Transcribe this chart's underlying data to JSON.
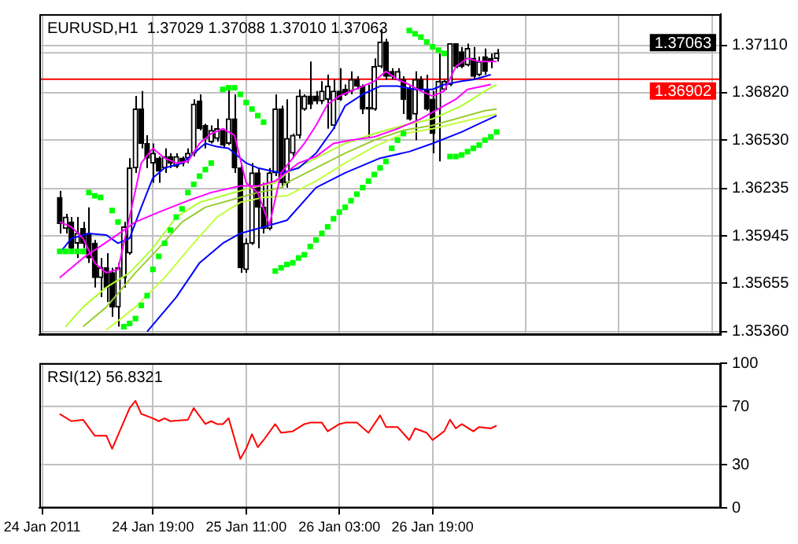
{
  "chart_data": [
    {
      "type": "candlestick",
      "title": "EURUSD,H1  1.37029 1.37088 1.37010 1.37063",
      "x": [
        "2011-01-24T03:00",
        "2011-01-24T04:00",
        "2011-01-24T05:00",
        "2011-01-24T06:00",
        "2011-01-24T07:00",
        "2011-01-24T08:00",
        "2011-01-24T09:00",
        "2011-01-24T10:00",
        "2011-01-24T11:00",
        "2011-01-24T12:00",
        "2011-01-24T13:00",
        "2011-01-24T14:00",
        "2011-01-24T15:00",
        "2011-01-24T16:00",
        "2011-01-24T17:00",
        "2011-01-24T18:00",
        "2011-01-24T19:00",
        "2011-01-24T20:00",
        "2011-01-24T21:00",
        "2011-01-24T22:00",
        "2011-01-24T23:00",
        "2011-01-25T00:00",
        "2011-01-25T01:00",
        "2011-01-25T02:00",
        "2011-01-25T03:00",
        "2011-01-25T04:00",
        "2011-01-25T05:00",
        "2011-01-25T06:00",
        "2011-01-25T07:00",
        "2011-01-25T08:00",
        "2011-01-25T09:00",
        "2011-01-25T10:00",
        "2011-01-25T11:00",
        "2011-01-25T12:00",
        "2011-01-25T13:00",
        "2011-01-25T14:00",
        "2011-01-25T15:00",
        "2011-01-25T16:00",
        "2011-01-25T17:00",
        "2011-01-25T18:00",
        "2011-01-25T19:00",
        "2011-01-25T20:00",
        "2011-01-25T21:00",
        "2011-01-25T22:00",
        "2011-01-25T23:00",
        "2011-01-26T00:00",
        "2011-01-26T01:00",
        "2011-01-26T02:00",
        "2011-01-26T03:00",
        "2011-01-26T04:00",
        "2011-01-26T05:00",
        "2011-01-26T06:00",
        "2011-01-26T07:00",
        "2011-01-26T08:00",
        "2011-01-26T09:00",
        "2011-01-26T10:00",
        "2011-01-26T11:00",
        "2011-01-26T12:00",
        "2011-01-26T13:00",
        "2011-01-26T14:00",
        "2011-01-26T15:00",
        "2011-01-26T16:00",
        "2011-01-26T17:00",
        "2011-01-26T18:00",
        "2011-01-26T19:00",
        "2011-01-26T20:00",
        "2011-01-26T21:00",
        "2011-01-26T22:00",
        "2011-01-26T23:00",
        "2011-01-27T00:00",
        "2011-01-27T01:00",
        "2011-01-27T02:00",
        "2011-01-27T03:00",
        "2011-01-27T04:00",
        "2011-01-27T05:00",
        "2011-01-27T06:00"
      ],
      "ohlc": [
        [
          1.3618,
          1.3622,
          1.3596,
          1.3602
        ],
        [
          1.3599,
          1.3608,
          1.3596,
          1.3606
        ],
        [
          1.3603,
          1.3606,
          1.3584,
          1.3587
        ],
        [
          1.359,
          1.3606,
          1.3581,
          1.3596
        ],
        [
          1.3599,
          1.3603,
          1.3587,
          1.359
        ],
        [
          1.3596,
          1.3612,
          1.3578,
          1.3581
        ],
        [
          1.359,
          1.3592,
          1.3563,
          1.3569
        ],
        [
          1.3569,
          1.3581,
          1.3557,
          1.3575
        ],
        [
          1.3575,
          1.3584,
          1.3554,
          1.3563
        ],
        [
          1.3572,
          1.3575,
          1.3545,
          1.3551
        ],
        [
          1.3551,
          1.3578,
          1.3539,
          1.3575
        ],
        [
          1.3569,
          1.3603,
          1.3563,
          1.36
        ],
        [
          1.3584,
          1.3642,
          1.3583,
          1.3636
        ],
        [
          1.3636,
          1.368,
          1.3633,
          1.3672
        ],
        [
          1.3672,
          1.3683,
          1.3648,
          1.3651
        ],
        [
          1.3651,
          1.3656,
          1.3636,
          1.3642
        ],
        [
          1.3639,
          1.3651,
          1.3627,
          1.3645
        ],
        [
          1.3642,
          1.3643,
          1.3627,
          1.3634
        ],
        [
          1.3636,
          1.3648,
          1.3633,
          1.3643
        ],
        [
          1.3643,
          1.3645,
          1.3636,
          1.3639
        ],
        [
          1.3637,
          1.3645,
          1.3636,
          1.3643
        ],
        [
          1.3642,
          1.3643,
          1.3637,
          1.3639
        ],
        [
          1.3642,
          1.3648,
          1.3639,
          1.3645
        ],
        [
          1.3645,
          1.3678,
          1.3643,
          1.3675
        ],
        [
          1.3677,
          1.3681,
          1.3659,
          1.366
        ],
        [
          1.3662,
          1.3663,
          1.3648,
          1.3654
        ],
        [
          1.3652,
          1.3662,
          1.3651,
          1.3659
        ],
        [
          1.3654,
          1.3666,
          1.3652,
          1.366
        ],
        [
          1.3659,
          1.366,
          1.3648,
          1.365
        ],
        [
          1.3651,
          1.3684,
          1.365,
          1.3666
        ],
        [
          1.3666,
          1.3681,
          1.3633,
          1.3636
        ],
        [
          1.3636,
          1.3639,
          1.3572,
          1.3575
        ],
        [
          1.3574,
          1.3593,
          1.3572,
          1.359
        ],
        [
          1.359,
          1.3639,
          1.3589,
          1.3633
        ],
        [
          1.3633,
          1.3636,
          1.3587,
          1.3612
        ],
        [
          1.3612,
          1.3627,
          1.3596,
          1.3599
        ],
        [
          1.3599,
          1.3636,
          1.3598,
          1.3633
        ],
        [
          1.3633,
          1.3681,
          1.3631,
          1.3672
        ],
        [
          1.3672,
          1.3674,
          1.3624,
          1.3627
        ],
        [
          1.3627,
          1.3678,
          1.3624,
          1.3654
        ],
        [
          1.3645,
          1.3657,
          1.3642,
          1.3656
        ],
        [
          1.3656,
          1.3684,
          1.3654,
          1.368
        ],
        [
          1.3672,
          1.3681,
          1.3671,
          1.368
        ],
        [
          1.368,
          1.3701,
          1.3672,
          1.3675
        ],
        [
          1.368,
          1.3683,
          1.3675,
          1.3677
        ],
        [
          1.3677,
          1.3689,
          1.3675,
          1.3683
        ],
        [
          1.3678,
          1.3693,
          1.366,
          1.3686
        ],
        [
          1.3662,
          1.369,
          1.366,
          1.3683
        ],
        [
          1.3683,
          1.3697,
          1.3677,
          1.3678
        ],
        [
          1.3684,
          1.3687,
          1.368,
          1.3681
        ],
        [
          1.3683,
          1.3695,
          1.3681,
          1.369
        ],
        [
          1.369,
          1.3692,
          1.3684,
          1.3686
        ],
        [
          1.3686,
          1.3687,
          1.3669,
          1.3672
        ],
        [
          1.3673,
          1.3687,
          1.3655,
          1.3672
        ],
        [
          1.3672,
          1.3703,
          1.3671,
          1.3698
        ],
        [
          1.3698,
          1.3721,
          1.3697,
          1.3713
        ],
        [
          1.3713,
          1.3715,
          1.369,
          1.3692
        ],
        [
          1.3695,
          1.3697,
          1.369,
          1.3692
        ],
        [
          1.369,
          1.3697,
          1.3689,
          1.3695
        ],
        [
          1.369,
          1.3692,
          1.3669,
          1.3678
        ],
        [
          1.3684,
          1.3686,
          1.3665,
          1.3666
        ],
        [
          1.3669,
          1.3695,
          1.3653,
          1.369
        ],
        [
          1.369,
          1.3692,
          1.3683,
          1.3684
        ],
        [
          1.3684,
          1.3693,
          1.3671,
          1.3672
        ],
        [
          1.3678,
          1.3683,
          1.3645,
          1.3657
        ],
        [
          1.3672,
          1.3706,
          1.364,
          1.3689
        ],
        [
          1.3684,
          1.369,
          1.3683,
          1.3689
        ],
        [
          1.3687,
          1.3712,
          1.3686,
          1.3712
        ],
        [
          1.3712,
          1.3712,
          1.3697,
          1.3698
        ],
        [
          1.3707,
          1.371,
          1.3697,
          1.3698
        ],
        [
          1.3699,
          1.3712,
          1.3698,
          1.3709
        ],
        [
          1.3703,
          1.371,
          1.369,
          1.3692
        ],
        [
          1.3693,
          1.3704,
          1.3692,
          1.3701
        ],
        [
          1.3704,
          1.3709,
          1.3693,
          1.3695
        ],
        [
          1.3703,
          1.3706,
          1.3697,
          1.3701
        ],
        [
          1.37029,
          1.37088,
          1.3701,
          1.37063
        ]
      ],
      "series": [
        {
          "type": "line",
          "marker": "none",
          "color": "#ff00ff",
          "x": [
            "2011-01-24T03:00",
            "2011-01-24T05:00",
            "2011-01-24T07:00",
            "2011-01-24T09:00",
            "2011-01-24T11:00",
            "2011-01-24T13:00",
            "2011-01-24T15:00",
            "2011-01-24T17:00",
            "2011-01-24T19:00",
            "2011-01-24T21:00",
            "2011-01-24T23:00",
            "2011-01-25T01:00",
            "2011-01-25T03:00",
            "2011-01-25T05:00",
            "2011-01-25T07:00",
            "2011-01-25T09:00",
            "2011-01-25T11:00",
            "2011-01-25T13:00",
            "2011-01-25T15:00",
            "2011-01-25T17:00",
            "2011-01-25T19:00",
            "2011-01-25T21:00",
            "2011-01-25T23:00",
            "2011-01-26T01:00",
            "2011-01-26T03:00",
            "2011-01-26T05:00",
            "2011-01-26T07:00",
            "2011-01-26T09:00",
            "2011-01-26T11:00",
            "2011-01-26T13:00",
            "2011-01-26T15:00",
            "2011-01-26T17:00",
            "2011-01-26T19:00",
            "2011-01-26T21:00",
            "2011-01-26T23:00",
            "2011-01-27T01:00",
            "2011-01-27T03:00",
            "2011-01-27T06:00"
          ],
          "values": [
            1.3603,
            1.36,
            1.3593,
            1.3578,
            1.3572,
            1.3574,
            1.3606,
            1.3639,
            1.3648,
            1.3642,
            1.3639,
            1.364,
            1.3651,
            1.3657,
            1.366,
            1.3656,
            1.3627,
            1.3621,
            1.3601,
            1.3633,
            1.3642,
            1.3651,
            1.3662,
            1.3675,
            1.368,
            1.3683,
            1.3686,
            1.3689,
            1.3695,
            1.369,
            1.3687,
            1.3683,
            1.368,
            1.3683,
            1.3698,
            1.3703,
            1.3701,
            1.3701
          ]
        },
        {
          "type": "line",
          "marker": "none",
          "color": "#ff00ff",
          "x": [
            "2011-01-24T03:00",
            "2011-01-24T07:00",
            "2011-01-24T12:00",
            "2011-01-24T16:00",
            "2011-01-24T20:00",
            "2011-01-25T01:00",
            "2011-01-25T05:00",
            "2011-01-25T10:00",
            "2011-01-25T13:00",
            "2011-01-25T16:00",
            "2011-01-25T20:00",
            "2011-01-25T23:00",
            "2011-01-26T02:00",
            "2011-01-26T05:00",
            "2011-01-26T09:00",
            "2011-01-26T13:00",
            "2011-01-26T17:00",
            "2011-01-26T20:00",
            "2011-01-26T23:00",
            "2011-01-27T01:00",
            "2011-01-27T05:00"
          ],
          "values": [
            1.3569,
            1.3581,
            1.3593,
            1.3603,
            1.3609,
            1.3616,
            1.3621,
            1.3625,
            1.3625,
            1.3628,
            1.3639,
            1.3643,
            1.3651,
            1.3653,
            1.3655,
            1.366,
            1.3666,
            1.3672,
            1.3678,
            1.3684,
            1.3687
          ]
        },
        {
          "type": "line",
          "marker": "none",
          "color": "#0000ff",
          "x": [
            "2011-01-24T03:00",
            "2011-01-24T05:00",
            "2011-01-24T08:00",
            "2011-01-24T11:00",
            "2011-01-24T13:00",
            "2011-01-24T15:00",
            "2011-01-24T17:00",
            "2011-01-24T19:00",
            "2011-01-24T21:00",
            "2011-01-25T00:00",
            "2011-01-25T01:00",
            "2011-01-25T04:00",
            "2011-01-25T06:00",
            "2011-01-25T08:00",
            "2011-01-25T11:00",
            "2011-01-25T13:00",
            "2011-01-25T17:00",
            "2011-01-25T20:00",
            "2011-01-25T23:00",
            "2011-01-26T02:00",
            "2011-01-26T04:00",
            "2011-01-26T07:00",
            "2011-01-26T10:00",
            "2011-01-26T13:00",
            "2011-01-26T16:00",
            "2011-01-26T19:00",
            "2011-01-26T21:00",
            "2011-01-27T00:00",
            "2011-01-27T02:00",
            "2011-01-27T05:00"
          ],
          "values": [
            1.3584,
            1.3593,
            1.3596,
            1.3595,
            1.359,
            1.3593,
            1.3612,
            1.363,
            1.3636,
            1.3639,
            1.3642,
            1.3651,
            1.3649,
            1.3648,
            1.3639,
            1.3636,
            1.3633,
            1.3636,
            1.3645,
            1.366,
            1.3674,
            1.3681,
            1.3686,
            1.3686,
            1.3684,
            1.3684,
            1.3687,
            1.3689,
            1.369,
            1.3693
          ]
        },
        {
          "type": "line",
          "marker": "none",
          "color": "#0000ff",
          "x": [
            "2011-01-24T18:00",
            "2011-01-24T23:00",
            "2011-01-25T03:00",
            "2011-01-25T07:00",
            "2011-01-25T10:00",
            "2011-01-25T13:00",
            "2011-01-25T18:00",
            "2011-01-25T23:00",
            "2011-01-26T04:00",
            "2011-01-26T10:00",
            "2011-01-26T15:00",
            "2011-01-26T19:00",
            "2011-01-27T00:00",
            "2011-01-27T03:00",
            "2011-01-27T06:00"
          ],
          "values": [
            1.3536,
            1.3557,
            1.3578,
            1.359,
            1.3596,
            1.3599,
            1.3604,
            1.3624,
            1.3633,
            1.3642,
            1.3646,
            1.3651,
            1.3658,
            1.3663,
            1.3668
          ]
        },
        {
          "type": "line",
          "marker": "none",
          "color": "#adff2f",
          "x": [
            "2011-01-24T04:00",
            "2011-01-24T07:00",
            "2011-01-24T11:00",
            "2011-01-24T15:00",
            "2011-01-24T19:00",
            "2011-01-24T23:00",
            "2011-01-25T03:00",
            "2011-01-25T07:00",
            "2011-01-25T12:00",
            "2011-01-25T16:00",
            "2011-01-25T18:00",
            "2011-01-25T23:00",
            "2011-01-26T04:00",
            "2011-01-26T09:00",
            "2011-01-26T14:00",
            "2011-01-26T19:00",
            "2011-01-27T00:00",
            "2011-01-27T04:00",
            "2011-01-27T06:00"
          ],
          "values": [
            1.3539,
            1.3551,
            1.3563,
            1.3572,
            1.3587,
            1.3606,
            1.3615,
            1.3619,
            1.3624,
            1.3627,
            1.3633,
            1.3642,
            1.3651,
            1.3657,
            1.3662,
            1.3666,
            1.3674,
            1.3683,
            1.3687
          ]
        },
        {
          "type": "line",
          "marker": "none",
          "color": "#9acd32",
          "x": [
            "2011-01-24T07:00",
            "2011-01-24T11:00",
            "2011-01-24T16:00",
            "2011-01-24T20:00",
            "2011-01-25T00:00",
            "2011-01-25T04:00",
            "2011-01-25T08:00",
            "2011-01-25T13:00",
            "2011-01-25T17:00",
            "2011-01-25T18:00",
            "2011-01-25T23:00",
            "2011-01-26T04:00",
            "2011-01-26T09:00",
            "2011-01-26T14:00",
            "2011-01-26T19:00",
            "2011-01-27T01:00",
            "2011-01-27T04:00",
            "2011-01-27T06:00"
          ],
          "values": [
            1.3539,
            1.3551,
            1.3572,
            1.3587,
            1.3603,
            1.3612,
            1.3616,
            1.3621,
            1.3624,
            1.3627,
            1.3636,
            1.3645,
            1.3653,
            1.3659,
            1.3662,
            1.3668,
            1.3671,
            1.3672
          ]
        },
        {
          "type": "line",
          "marker": "none",
          "color": "#c0ff3e",
          "x": [
            "2011-01-24T11:00",
            "2011-01-24T16:00",
            "2011-01-24T21:00",
            "2011-01-25T02:00",
            "2011-01-25T06:00",
            "2011-01-25T10:00",
            "2011-01-25T14:00",
            "2011-01-25T18:00",
            "2011-01-25T23:00",
            "2011-01-26T04:00",
            "2011-01-26T09:00",
            "2011-01-26T14:00",
            "2011-01-26T19:00",
            "2011-01-27T01:00",
            "2011-01-27T06:00"
          ],
          "values": [
            1.3537,
            1.3551,
            1.3569,
            1.359,
            1.3606,
            1.3615,
            1.3618,
            1.3619,
            1.3628,
            1.3639,
            1.3649,
            1.3657,
            1.366,
            1.3665,
            1.3669
          ]
        },
        {
          "type": "scatter",
          "marker": "square",
          "color": "#00ff00",
          "x": [
            "2011-01-24T03:00",
            "2011-01-24T04:00",
            "2011-01-24T05:00",
            "2011-01-24T06:00",
            "2011-01-24T07:00",
            "2011-01-24T08:00",
            "2011-01-24T09:00",
            "2011-01-24T10:00",
            "2011-01-24T12:00",
            "2011-01-24T13:00",
            "2011-01-24T14:00",
            "2011-01-24T15:00",
            "2011-01-24T16:00",
            "2011-01-24T17:00",
            "2011-01-24T18:00",
            "2011-01-24T19:00",
            "2011-01-24T20:00",
            "2011-01-24T21:00",
            "2011-01-24T22:00",
            "2011-01-24T23:00",
            "2011-01-25T00:00",
            "2011-01-25T01:00",
            "2011-01-25T02:00",
            "2011-01-25T03:00",
            "2011-01-25T04:00",
            "2011-01-25T05:00",
            "2011-01-25T07:00",
            "2011-01-25T08:00",
            "2011-01-25T09:00",
            "2011-01-25T10:00",
            "2011-01-25T11:00",
            "2011-01-25T12:00",
            "2011-01-25T13:00",
            "2011-01-25T14:00",
            "2011-01-25T16:00",
            "2011-01-25T17:00",
            "2011-01-25T18:00",
            "2011-01-25T19:00",
            "2011-01-25T20:00",
            "2011-01-25T21:00",
            "2011-01-25T22:00",
            "2011-01-25T23:00",
            "2011-01-26T00:00",
            "2011-01-26T01:00",
            "2011-01-26T02:00",
            "2011-01-26T03:00",
            "2011-01-26T04:00",
            "2011-01-26T05:00",
            "2011-01-26T06:00",
            "2011-01-26T07:00",
            "2011-01-26T08:00",
            "2011-01-26T09:00",
            "2011-01-26T10:00",
            "2011-01-26T11:00",
            "2011-01-26T12:00",
            "2011-01-26T13:00",
            "2011-01-26T14:00",
            "2011-01-26T15:00",
            "2011-01-26T16:00",
            "2011-01-26T17:00",
            "2011-01-26T18:00",
            "2011-01-26T19:00",
            "2011-01-26T20:00",
            "2011-01-26T21:00",
            "2011-01-26T22:00",
            "2011-01-26T23:00",
            "2011-01-27T00:00",
            "2011-01-27T01:00",
            "2011-01-27T02:00",
            "2011-01-27T03:00",
            "2011-01-27T04:00",
            "2011-01-27T05:00",
            "2011-01-27T06:00"
          ],
          "values": [
            1.3585,
            1.3585,
            1.3585,
            1.3585,
            1.3585,
            1.3621,
            1.3619,
            1.3618,
            1.361,
            1.3603,
            1.3539,
            1.3541,
            1.3544,
            1.3552,
            1.3558,
            1.3574,
            1.3582,
            1.359,
            1.3598,
            1.3606,
            1.3611,
            1.3621,
            1.3626,
            1.3631,
            1.3635,
            1.3639,
            1.3684,
            1.3685,
            1.3685,
            1.3681,
            1.3676,
            1.3672,
            1.3668,
            1.3664,
            1.3573,
            1.3575,
            1.3577,
            1.3578,
            1.3581,
            1.3583,
            1.3588,
            1.3592,
            1.3596,
            1.36,
            1.3605,
            1.3609,
            1.3612,
            1.3616,
            1.362,
            1.3624,
            1.3628,
            1.3632,
            1.3636,
            1.364,
            1.3648,
            1.3653,
            1.3657,
            1.372,
            1.3718,
            1.3716,
            1.3713,
            1.371,
            1.3708,
            1.3706,
            1.3643,
            1.3643,
            1.3644,
            1.3646,
            1.3648,
            1.365,
            1.3653,
            1.3655,
            1.3658
          ]
        }
      ],
      "ref_lines": [
        {
          "axis": "y",
          "value": 1.37063,
          "label": "1.37063",
          "color": "#c0c0c0"
        },
        {
          "axis": "y",
          "value": 1.36902,
          "label": "1.36902",
          "color": "#ff0000"
        }
      ],
      "xlim": [
        "2011-01-23T23:30",
        "2011-01-28T20:30"
      ],
      "xticks": [
        "2011-01-24",
        "2011-01-24T19:00",
        "2011-01-25T11:00",
        "2011-01-26T03:00",
        "2011-01-26T19:00",
        "2011-01-27T11:00",
        "2011-01-28T03:00",
        "2011-01-28T19:00"
      ],
      "ylim": [
        1.3534,
        1.373
      ],
      "yticks": [
        {
          "value": 1.3536,
          "label": "1.35360"
        },
        1.35655,
        1.35945,
        1.36235,
        {
          "value": 1.3653,
          "label": "1.36530"
        },
        {
          "value": 1.3682,
          "label": "1.36820"
        },
        {
          "value": 1.3711,
          "label": "1.37110"
        }
      ],
      "grid": true,
      "tick_labels": "y"
    },
    {
      "type": "line",
      "title": "RSI(12) 56.8321",
      "series": [
        {
          "type": "line",
          "marker": "none",
          "color": "#ff0000",
          "x": [
            "2011-01-24T03:00",
            "2011-01-24T05:00",
            "2011-01-24T07:00",
            "2011-01-24T09:00",
            "2011-01-24T11:00",
            "2011-01-24T12:00",
            "2011-01-24T15:00",
            "2011-01-24T16:00",
            "2011-01-24T17:00",
            "2011-01-24T19:00",
            "2011-01-24T20:00",
            "2011-01-24T21:00",
            "2011-01-24T22:00",
            "2011-01-25T01:00",
            "2011-01-25T02:00",
            "2011-01-25T04:00",
            "2011-01-25T05:00",
            "2011-01-25T06:00",
            "2011-01-25T07:00",
            "2011-01-25T08:00",
            "2011-01-25T10:00",
            "2011-01-25T11:00",
            "2011-01-25T12:00",
            "2011-01-25T13:00",
            "2011-01-25T14:00",
            "2011-01-25T16:00",
            "2011-01-25T17:00",
            "2011-01-25T19:00",
            "2011-01-25T21:00",
            "2011-01-25T22:00",
            "2011-01-26T00:00",
            "2011-01-26T01:00",
            "2011-01-26T03:00",
            "2011-01-26T04:00",
            "2011-01-26T06:00",
            "2011-01-26T08:00",
            "2011-01-26T10:00",
            "2011-01-26T11:00",
            "2011-01-26T13:00",
            "2011-01-26T15:00",
            "2011-01-26T16:00",
            "2011-01-26T18:00",
            "2011-01-26T19:00",
            "2011-01-26T21:00",
            "2011-01-26T22:00",
            "2011-01-26T23:00",
            "2011-01-27T00:00",
            "2011-01-27T02:00",
            "2011-01-27T03:00",
            "2011-01-27T05:00",
            "2011-01-27T06:00"
          ],
          "values": [
            65,
            60,
            61,
            50,
            50,
            41,
            69,
            74,
            65,
            62,
            60,
            62,
            60,
            61,
            69,
            58,
            60,
            58,
            58,
            62,
            34,
            41,
            51,
            42,
            47,
            58,
            52,
            53,
            58,
            59,
            59,
            53,
            58,
            59,
            59,
            52,
            64,
            56,
            56,
            47,
            55,
            52,
            47,
            53,
            61,
            55,
            58,
            53,
            56,
            55,
            57
          ]
        }
      ],
      "xlim": [
        "2011-01-23T23:30",
        "2011-01-28T20:30"
      ],
      "xticks": [
        {
          "value": "2011-01-24",
          "label": "24 Jan 2011"
        },
        {
          "value": "2011-01-24T19:00",
          "label": "24 Jan 19:00"
        },
        {
          "value": "2011-01-25T11:00",
          "label": "25 Jan 11:00"
        },
        {
          "value": "2011-01-26T03:00",
          "label": "26 Jan 03:00"
        },
        {
          "value": "2011-01-26T19:00",
          "label": "26 Jan 19:00"
        }
      ],
      "ylim": [
        0,
        100
      ],
      "yticks": [
        0,
        30,
        70,
        100
      ],
      "grid": true
    }
  ]
}
